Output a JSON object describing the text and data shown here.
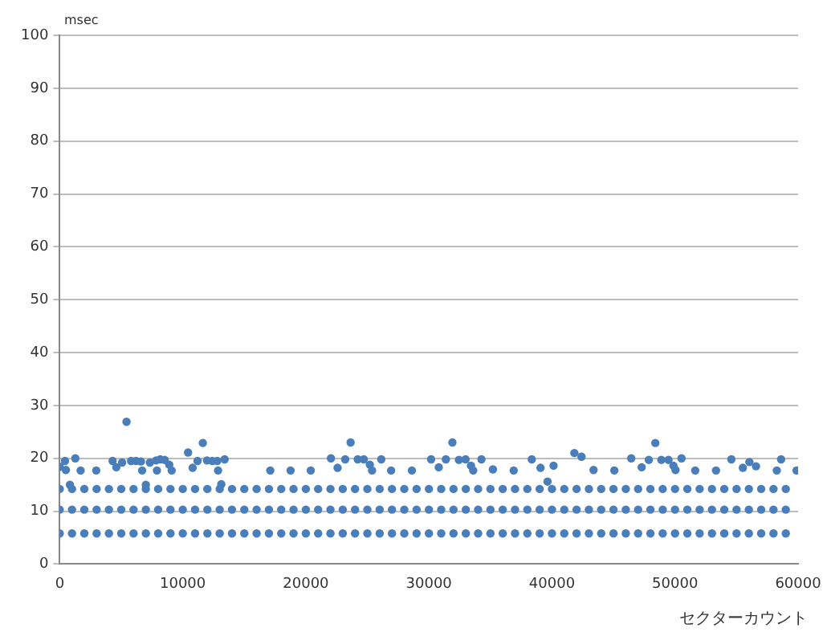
{
  "chart_data": {
    "type": "scatter",
    "xlabel": "セクターカウント",
    "ylabel": "msec",
    "x": [
      0,
      1000,
      2000,
      3000,
      4000,
      5000,
      6000,
      7000,
      8000,
      9000,
      10000,
      11000,
      12000,
      13000,
      14000,
      15000,
      16000,
      17000,
      18000,
      19000,
      20000,
      21000,
      22000,
      23000,
      24000,
      25000,
      26000,
      27000,
      28000,
      29000,
      30000,
      31000,
      32000,
      33000,
      34000,
      35000,
      36000,
      37000,
      38000,
      39000,
      40000,
      41000,
      42000,
      43000,
      44000,
      45000,
      46000,
      47000,
      48000,
      49000,
      50000,
      51000,
      52000,
      53000,
      54000,
      55000,
      56000,
      57000,
      58000,
      59000
    ],
    "series": [
      {
        "color": "#4a7ebb",
        "values": [
          14.2,
          14.2,
          14.2,
          14.2,
          14.2,
          14.2,
          14.2,
          14.2,
          14.2,
          14.2,
          14.2,
          14.2,
          14.2,
          14.2,
          14.2,
          14.2,
          14.2,
          14.2,
          14.2,
          14.2,
          14.2,
          14.2,
          14.2,
          14.2,
          14.2,
          14.2,
          14.2,
          14.2,
          14.2,
          14.2,
          14.2,
          14.2,
          14.2,
          14.2,
          14.2,
          14.2,
          14.2,
          14.2,
          14.2,
          14.2,
          14.2,
          14.2,
          14.2,
          14.2,
          14.2,
          14.2,
          14.2,
          14.2,
          14.2,
          14.2,
          14.2,
          14.2,
          14.2,
          14.2,
          14.2,
          14.2,
          14.2,
          14.2,
          14.2,
          14.2
        ]
      },
      {
        "color": "#4a7ebb",
        "values": [
          10.3,
          10.3,
          10.3,
          10.3,
          10.3,
          10.3,
          10.3,
          10.3,
          10.3,
          10.3,
          10.3,
          10.3,
          10.3,
          10.3,
          10.3,
          10.3,
          10.3,
          10.3,
          10.3,
          10.3,
          10.3,
          10.3,
          10.3,
          10.3,
          10.3,
          10.3,
          10.3,
          10.3,
          10.3,
          10.3,
          10.3,
          10.3,
          10.3,
          10.3,
          10.3,
          10.3,
          10.3,
          10.3,
          10.3,
          10.3,
          10.3,
          10.3,
          10.3,
          10.3,
          10.3,
          10.3,
          10.3,
          10.3,
          10.3,
          10.3,
          10.3,
          10.3,
          10.3,
          10.3,
          10.3,
          10.3,
          10.3,
          10.3,
          10.3,
          10.3
        ]
      },
      {
        "color": "#4a7ebb",
        "values": [
          5.8,
          5.8,
          5.8,
          5.8,
          5.8,
          5.8,
          5.8,
          5.8,
          5.8,
          5.8,
          5.8,
          5.8,
          5.8,
          5.8,
          5.8,
          5.8,
          5.8,
          5.8,
          5.8,
          5.8,
          5.8,
          5.8,
          5.8,
          5.8,
          5.8,
          5.8,
          5.8,
          5.8,
          5.8,
          5.8,
          5.8,
          5.8,
          5.8,
          5.8,
          5.8,
          5.8,
          5.8,
          5.8,
          5.8,
          5.8,
          5.8,
          5.8,
          5.8,
          5.8,
          5.8,
          5.8,
          5.8,
          5.8,
          5.8,
          5.8,
          5.8,
          5.8,
          5.8,
          5.8,
          5.8,
          5.8,
          5.8,
          5.8,
          5.8,
          5.8
        ]
      },
      {
        "color": "#4a7ebb",
        "x": [
          0,
          430,
          500,
          830,
          1270,
          1700,
          2970,
          4300,
          4600,
          5070,
          5430,
          5800,
          6200,
          6600,
          6700,
          7000,
          7330,
          7830,
          7900,
          8170,
          8530,
          8900,
          9100,
          10430,
          10800,
          11200,
          11630,
          11970,
          12400,
          12800,
          12870,
          13130,
          13400,
          17110,
          18760,
          20400,
          22040,
          22580,
          23200,
          23640,
          24220,
          24710,
          25200,
          25380,
          26130,
          26930,
          28620,
          30180,
          30800,
          31380,
          31910,
          32440,
          32980,
          33420,
          33600,
          34270,
          35200,
          36890,
          38360,
          39070,
          39640,
          40130,
          41820,
          42400,
          43380,
          45070,
          46440,
          47290,
          47870,
          48400,
          48890,
          49470,
          49870,
          50040,
          50530,
          51640,
          53330,
          54580,
          55510,
          56040,
          56580,
          58270,
          58620,
          59870
        ],
        "values": [
          18.4,
          19.5,
          17.8,
          15.0,
          20.0,
          17.7,
          17.7,
          19.5,
          18.3,
          19.2,
          26.9,
          19.5,
          19.5,
          19.4,
          17.7,
          15.0,
          19.2,
          19.6,
          17.7,
          19.8,
          19.7,
          18.8,
          17.7,
          21.1,
          18.2,
          19.5,
          22.9,
          19.6,
          19.5,
          19.5,
          17.7,
          15.1,
          19.8,
          17.7,
          17.7,
          17.7,
          20.0,
          18.2,
          19.8,
          23.0,
          19.8,
          19.8,
          18.8,
          17.7,
          19.8,
          17.7,
          17.7,
          19.8,
          18.3,
          19.8,
          23.0,
          19.7,
          19.8,
          18.6,
          17.7,
          19.8,
          17.9,
          17.7,
          19.8,
          18.2,
          15.6,
          18.6,
          21.0,
          20.3,
          17.8,
          17.7,
          20.0,
          18.3,
          19.7,
          22.9,
          19.7,
          19.7,
          18.6,
          17.8,
          20.0,
          17.7,
          17.7,
          19.8,
          18.2,
          19.3,
          18.5,
          17.7,
          19.8,
          17.7
        ]
      }
    ],
    "marker": "circle",
    "grid": "y",
    "legend": false,
    "xlim": [
      0,
      60000
    ],
    "xticks": [
      0,
      10000,
      20000,
      30000,
      40000,
      50000,
      60000
    ],
    "ylim": [
      0,
      100
    ],
    "yticks": [
      0,
      10,
      20,
      30,
      40,
      50,
      60,
      70,
      80,
      90,
      100
    ]
  }
}
